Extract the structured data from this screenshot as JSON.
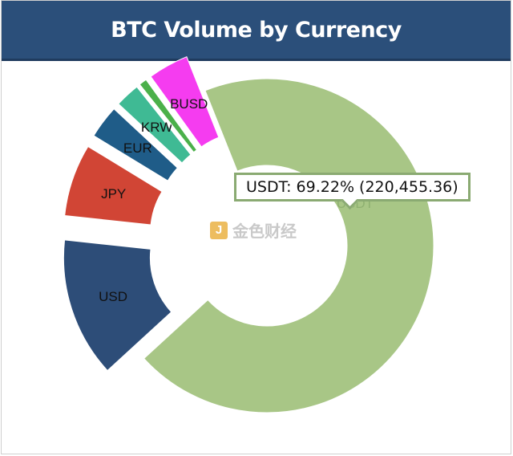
{
  "header": {
    "title": "BTC Volume by Currency"
  },
  "tooltip": {
    "text": "USDT: 69.22% (220,455.36)"
  },
  "watermark": {
    "icon_glyph": "J",
    "text": "金色财经"
  },
  "chart_data": {
    "type": "pie",
    "style": "donut",
    "title": "BTC Volume by Currency",
    "slices": [
      {
        "label": "USDT",
        "value": 220455.36,
        "percent": 69.22,
        "color": "#a8c686",
        "exploded": false
      },
      {
        "label": "USD",
        "value": 43000,
        "color": "#2d4d78",
        "exploded": true
      },
      {
        "label": "JPY",
        "value": 22300,
        "color": "#d14535",
        "exploded": true
      },
      {
        "label": "EUR",
        "value": 10200,
        "color": "#1f5c88",
        "exploded": true
      },
      {
        "label": "KRW",
        "value": 7600,
        "color": "#3fba94",
        "exploded": true
      },
      {
        "label": "",
        "value": 2400,
        "color": "#4bb04a",
        "exploded": true
      },
      {
        "label": "BUSD",
        "value": 12500,
        "color": "#f53cf0",
        "exploded": true
      }
    ]
  }
}
